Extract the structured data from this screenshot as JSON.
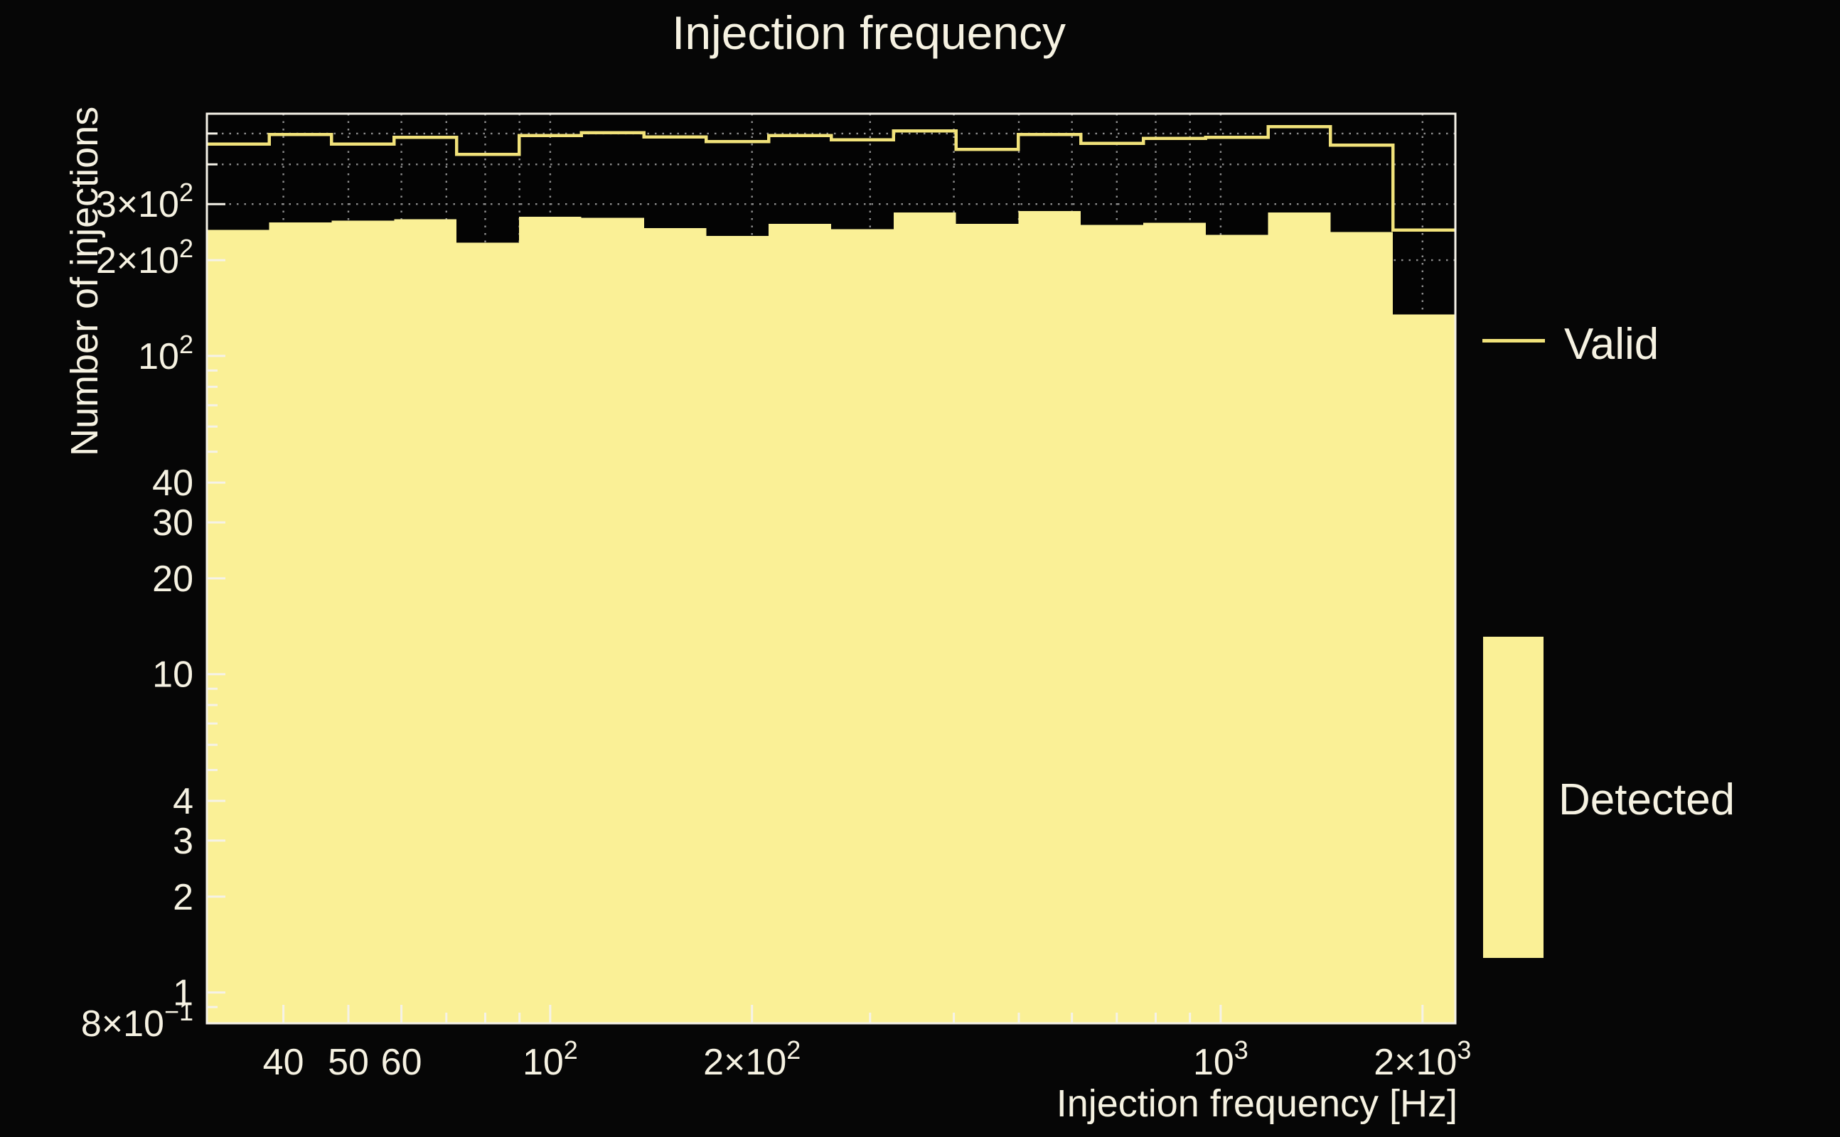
{
  "title": "Injection frequency",
  "x_axis_title": "Injection frequency [Hz]",
  "y_axis_title": "Number of injections",
  "legend": {
    "valid_label": "Valid",
    "detected_label": "Detected"
  },
  "colors": {
    "background": "#060606",
    "plot_background": "#040404",
    "detected_fill": "#faf096",
    "valid_line": "#f1e27a",
    "frame_and_ticks": "#f5f2e8",
    "grid": "#8f8f8f",
    "text": "#f6f2e2"
  },
  "chart_data": {
    "type": "bar",
    "subtype": "log-log step histograms",
    "title": "Injection frequency",
    "xlabel": "Injection frequency [Hz]",
    "ylabel": "Number of injections",
    "x_scale": "log",
    "y_scale": "log",
    "xlim": [
      30.76,
      2238.9
    ],
    "ylim": [
      0.8,
      577
    ],
    "grid": "dotted, at all log sub-ticks, drawn under histograms",
    "legend_position": "right, outside axes",
    "bin_edges_hz": [
      30.8,
      38.1,
      47.2,
      58.5,
      72.5,
      89.9,
      111.3,
      138.0,
      170.9,
      211.8,
      262.4,
      325.2,
      402.9,
      499.3,
      618.6,
      766.5,
      949.8,
      1176.9,
      1458.3,
      1806.9,
      2238.9
    ],
    "series": [
      {
        "name": "Valid",
        "style": "step-line",
        "values": [
          463,
          496,
          463,
          486,
          430,
          493,
          503,
          488,
          472,
          493,
          478,
          510,
          446,
          496,
          466,
          483,
          486,
          526,
          460,
          249
        ]
      },
      {
        "name": "Detected",
        "style": "step-filled",
        "values": [
          249,
          263,
          266,
          269,
          227,
          274,
          272,
          252,
          238,
          260,
          250,
          282,
          260,
          285,
          258,
          262,
          240,
          282,
          245,
          135
        ]
      }
    ],
    "x_ticks": [
      {
        "v": 40,
        "base": "40"
      },
      {
        "v": 50,
        "base": "50"
      },
      {
        "v": 60,
        "base": "60"
      },
      {
        "v": 70
      },
      {
        "v": 80
      },
      {
        "v": 90
      },
      {
        "v": 100,
        "base": "10",
        "exp": "2"
      },
      {
        "v": 200,
        "base": "2×10",
        "exp": "2"
      },
      {
        "v": 300
      },
      {
        "v": 400
      },
      {
        "v": 500
      },
      {
        "v": 600
      },
      {
        "v": 700
      },
      {
        "v": 800
      },
      {
        "v": 900
      },
      {
        "v": 1000,
        "base": "10",
        "exp": "3"
      },
      {
        "v": 2000,
        "base": "2×10",
        "exp": "3"
      }
    ],
    "y_ticks": [
      {
        "v": 0.8,
        "base": "8×10",
        "exp": "−1"
      },
      {
        "v": 0.9
      },
      {
        "v": 1,
        "base": "1"
      },
      {
        "v": 2,
        "base": "2"
      },
      {
        "v": 3,
        "base": "3"
      },
      {
        "v": 4,
        "base": "4"
      },
      {
        "v": 5
      },
      {
        "v": 6
      },
      {
        "v": 7
      },
      {
        "v": 8
      },
      {
        "v": 9
      },
      {
        "v": 10,
        "base": "10"
      },
      {
        "v": 20,
        "base": "20"
      },
      {
        "v": 30,
        "base": "30"
      },
      {
        "v": 40,
        "base": "40"
      },
      {
        "v": 50
      },
      {
        "v": 60
      },
      {
        "v": 70
      },
      {
        "v": 80
      },
      {
        "v": 90
      },
      {
        "v": 100,
        "base": "10",
        "exp": "2"
      },
      {
        "v": 200,
        "base": "2×10",
        "exp": "2"
      },
      {
        "v": 300,
        "base": "3×10",
        "exp": "2"
      },
      {
        "v": 400
      },
      {
        "v": 500
      }
    ],
    "x_gridline_values": [
      40,
      50,
      60,
      70,
      80,
      90,
      100,
      200,
      300,
      400,
      500,
      600,
      700,
      800,
      900,
      1000,
      2000
    ],
    "y_gridline_values": [
      1,
      2,
      3,
      4,
      5,
      6,
      7,
      8,
      9,
      10,
      20,
      30,
      40,
      50,
      60,
      70,
      80,
      90,
      100,
      200,
      300,
      400,
      500
    ]
  }
}
